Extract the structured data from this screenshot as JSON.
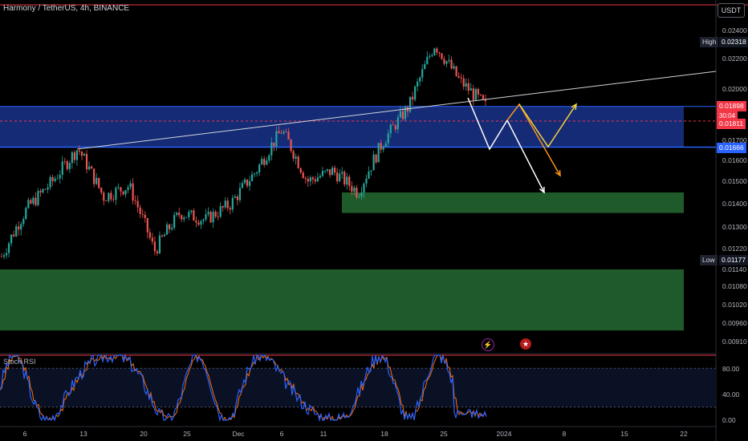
{
  "header": {
    "title": "Harmony / TetherUS, 4h, BINANCE",
    "currency_button": "USDT"
  },
  "indicator": {
    "name": "Stoch RSI"
  },
  "price_scale": {
    "high_label": "High",
    "high_value": "0.02318",
    "low_label": "Low",
    "low_value": "0.01177",
    "current_price": "0.01898",
    "countdown": "30:04",
    "dashed_level": "0.01811",
    "zone_level": "0.01666"
  },
  "colors": {
    "up_candle": "#26a69a",
    "down_candle": "#ef5350",
    "blue_zone": "#1e3a9e",
    "green_zone": "#1f5a2a",
    "rsi_k": "#2962ff",
    "rsi_d": "#ff6d00",
    "orange_arrow": "#f7931a",
    "yellow_arrow": "#f5d33a",
    "white_arrow": "#ffffff"
  },
  "chart_data": {
    "type": "candlestick",
    "symbol": "Harmony / TetherUS",
    "interval": "4h",
    "exchange": "BINANCE",
    "y_ticks": [
      "0.02400",
      "0.02200",
      "0.02000",
      "0.01700",
      "0.01600",
      "0.01500",
      "0.01400",
      "0.01300",
      "0.01220",
      "0.01140",
      "0.01080",
      "0.01020",
      "0.00960",
      "0.00910"
    ],
    "x_ticks": [
      "6",
      "13",
      "20",
      "25",
      "Dec",
      "6",
      "11",
      "18",
      "25",
      "2024",
      "8",
      "15",
      "22"
    ],
    "rsi_ticks": [
      "80.00",
      "40.00",
      "0.00"
    ],
    "high": 0.02318,
    "low": 0.01177,
    "last": 0.01898,
    "series_close_approx": [
      {
        "t": "Nov 3",
        "c": 0.0119
      },
      {
        "t": "Nov 7",
        "c": 0.0138
      },
      {
        "t": "Nov 10",
        "c": 0.015
      },
      {
        "t": "Nov 13",
        "c": 0.0166
      },
      {
        "t": "Nov 16",
        "c": 0.0143
      },
      {
        "t": "Nov 19",
        "c": 0.0148
      },
      {
        "t": "Nov 22",
        "c": 0.0121
      },
      {
        "t": "Nov 25",
        "c": 0.0136
      },
      {
        "t": "Nov 29",
        "c": 0.0133
      },
      {
        "t": "Dec 3",
        "c": 0.014
      },
      {
        "t": "Dec 7",
        "c": 0.0155
      },
      {
        "t": "Dec 10",
        "c": 0.0176
      },
      {
        "t": "Dec 13",
        "c": 0.015
      },
      {
        "t": "Dec 16",
        "c": 0.0155
      },
      {
        "t": "Dec 19",
        "c": 0.0145
      },
      {
        "t": "Dec 22",
        "c": 0.017
      },
      {
        "t": "Dec 24",
        "c": 0.019
      },
      {
        "t": "Dec 26",
        "c": 0.023
      },
      {
        "t": "Dec 28",
        "c": 0.0205
      },
      {
        "t": "Dec 30",
        "c": 0.019
      }
    ],
    "zones": [
      {
        "type": "resistance",
        "color": "blue",
        "from": 0.01666,
        "to": 0.01898
      },
      {
        "type": "support",
        "color": "green",
        "from": 0.0136,
        "to": 0.0145
      },
      {
        "type": "support",
        "color": "green",
        "from": 0.0094,
        "to": 0.0114
      }
    ],
    "stoch_rsi": {
      "ylim": [
        0,
        100
      ],
      "levels": [
        80,
        20
      ]
    }
  }
}
